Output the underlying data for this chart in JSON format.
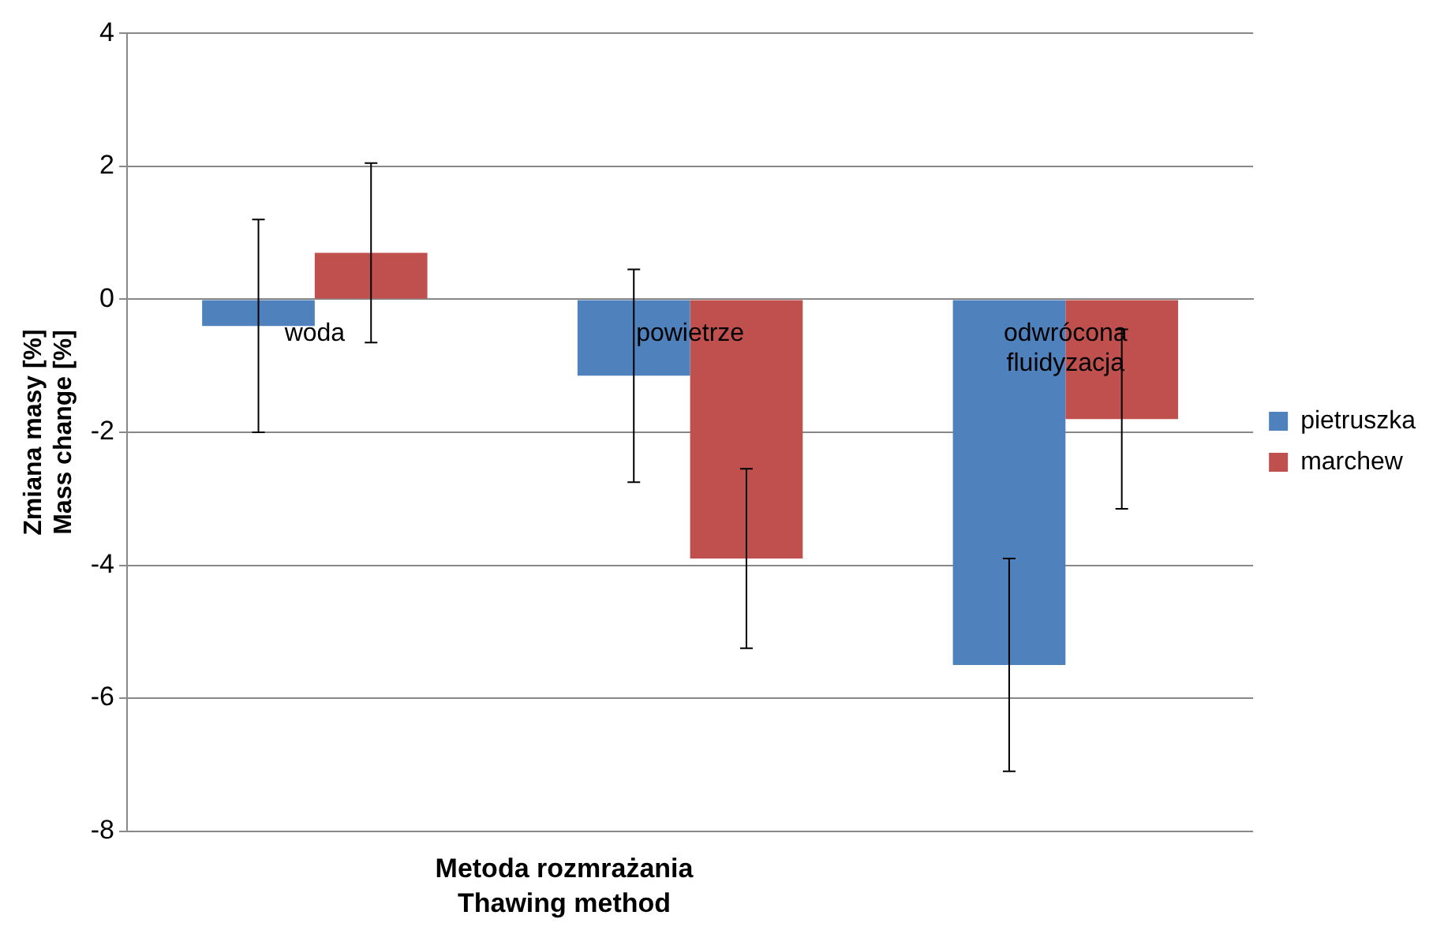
{
  "chart_data": {
    "type": "bar",
    "xlabel": "Metoda rozmrażania\nThawing method",
    "ylabel": "Zmiana masy [%]\nMass change [%]",
    "categories": [
      "woda",
      "powietrze",
      "odwrócona fluidyzacja"
    ],
    "series": [
      {
        "name": "pietruszka",
        "color": "#4f81bd",
        "values": [
          -0.4,
          -1.15,
          -5.5
        ],
        "errors": [
          1.6,
          1.6,
          1.6
        ]
      },
      {
        "name": "marchew",
        "color": "#c0504d",
        "values": [
          0.7,
          -3.9,
          -1.8
        ],
        "errors": [
          1.35,
          1.35,
          1.35
        ]
      }
    ],
    "ylim": [
      -8,
      4
    ],
    "yticks": [
      -8,
      -6,
      -4,
      -2,
      0,
      2,
      4
    ],
    "grid": "y",
    "legend": "right"
  }
}
